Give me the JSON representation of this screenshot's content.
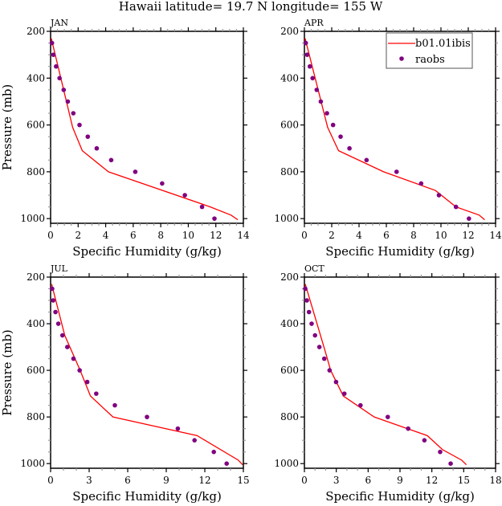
{
  "title": "Hawaii  latitude= 19.7 N longitude= 155 W",
  "legend": {
    "line_label": "b01.01ibis",
    "dot_label": "raobs",
    "placement": "top-right of APR panel"
  },
  "colors": {
    "model_line": "#ff0000",
    "obs_dots": "#800080",
    "axes": "#000000"
  },
  "chart_data": [
    {
      "type": "line",
      "panel": "JAN",
      "xlabel": "Specific Humidity (g/kg)",
      "ylabel": "Pressure (mb)",
      "xlim": [
        0,
        14
      ],
      "ylim": [
        200,
        1020
      ],
      "y_reversed": true,
      "xticks": [
        "0",
        "2",
        "4",
        "6",
        "8",
        "10",
        "12",
        "14"
      ],
      "yticks": [
        "200",
        "400",
        "600",
        "800",
        "1000"
      ],
      "series": [
        {
          "name": "b01.01ibis",
          "kind": "line",
          "x": [
            0.05,
            1.6,
            2.3,
            4.2,
            11.6,
            13.1,
            13.6
          ],
          "y": [
            230,
            610,
            710,
            800,
            950,
            985,
            1005
          ]
        },
        {
          "name": "raobs",
          "kind": "scatter",
          "x": [
            0.1,
            0.2,
            0.4,
            0.65,
            0.95,
            1.25,
            1.65,
            2.1,
            2.7,
            3.35,
            4.4,
            6.15,
            8.1,
            9.75,
            11.0,
            11.9
          ],
          "y": [
            250,
            300,
            350,
            400,
            450,
            500,
            550,
            600,
            650,
            700,
            750,
            800,
            850,
            900,
            950,
            1000
          ]
        }
      ]
    },
    {
      "type": "line",
      "panel": "APR",
      "xlabel": "Specific Humidity (g/kg)",
      "ylabel": "",
      "xlim": [
        0,
        14
      ],
      "ylim": [
        200,
        1020
      ],
      "y_reversed": true,
      "xticks": [
        "0",
        "2",
        "4",
        "6",
        "8",
        "10",
        "12",
        "14"
      ],
      "yticks": [
        "200",
        "400",
        "600",
        "800",
        "1000"
      ],
      "series": [
        {
          "name": "b01.01ibis",
          "kind": "line",
          "x": [
            0.05,
            1.7,
            2.5,
            5.8,
            9.6,
            11.1,
            12.8,
            13.2
          ],
          "y": [
            230,
            610,
            710,
            800,
            880,
            950,
            985,
            1005
          ]
        },
        {
          "name": "raobs",
          "kind": "scatter",
          "x": [
            0.1,
            0.2,
            0.4,
            0.6,
            0.9,
            1.2,
            1.65,
            2.1,
            2.65,
            3.3,
            4.55,
            6.75,
            8.55,
            9.85,
            11.1,
            12.05
          ],
          "y": [
            250,
            300,
            350,
            400,
            450,
            500,
            550,
            600,
            650,
            700,
            750,
            800,
            850,
            900,
            950,
            1000
          ]
        }
      ]
    },
    {
      "type": "line",
      "panel": "JUL",
      "xlabel": "Specific Humidity (g/kg)",
      "ylabel": "Pressure (mb)",
      "xlim": [
        0,
        15
      ],
      "ylim": [
        200,
        1020
      ],
      "y_reversed": true,
      "xticks": [
        "0",
        "3",
        "6",
        "9",
        "12",
        "15"
      ],
      "yticks": [
        "200",
        "400",
        "600",
        "800",
        "1000"
      ],
      "series": [
        {
          "name": "b01.01ibis",
          "kind": "line",
          "x": [
            0.08,
            1.1,
            2.3,
            3.1,
            4.85,
            11.4,
            14.6,
            14.95
          ],
          "y": [
            230,
            450,
            600,
            710,
            800,
            880,
            985,
            1005
          ]
        },
        {
          "name": "raobs",
          "kind": "scatter",
          "x": [
            0.12,
            0.2,
            0.38,
            0.6,
            0.92,
            1.3,
            1.78,
            2.26,
            2.85,
            3.55,
            5.0,
            7.5,
            9.9,
            11.2,
            12.7,
            13.7
          ],
          "y": [
            250,
            300,
            350,
            400,
            450,
            500,
            550,
            600,
            650,
            700,
            750,
            800,
            850,
            900,
            950,
            1000
          ]
        }
      ]
    },
    {
      "type": "line",
      "panel": "OCT",
      "xlabel": "Specific Humidity (g/kg)",
      "ylabel": "",
      "xlim": [
        0,
        18
      ],
      "ylim": [
        200,
        1020
      ],
      "y_reversed": true,
      "xticks": [
        "0",
        "3",
        "6",
        "9",
        "12",
        "15",
        "18"
      ],
      "yticks": [
        "200",
        "400",
        "600",
        "800",
        "1000"
      ],
      "series": [
        {
          "name": "b01.01ibis",
          "kind": "line",
          "x": [
            0.08,
            1.97,
            2.47,
            3.66,
            6.57,
            11.57,
            13.0,
            14.8,
            15.25
          ],
          "y": [
            230,
            520,
            600,
            710,
            800,
            880,
            940,
            985,
            1005
          ]
        },
        {
          "name": "raobs",
          "kind": "scatter",
          "x": [
            0.08,
            0.23,
            0.43,
            0.68,
            1.0,
            1.41,
            1.87,
            2.37,
            2.98,
            3.76,
            5.28,
            7.85,
            9.77,
            11.3,
            12.78,
            13.77
          ],
          "y": [
            250,
            300,
            350,
            400,
            450,
            500,
            550,
            600,
            650,
            700,
            750,
            800,
            850,
            900,
            950,
            1000
          ]
        }
      ]
    }
  ]
}
